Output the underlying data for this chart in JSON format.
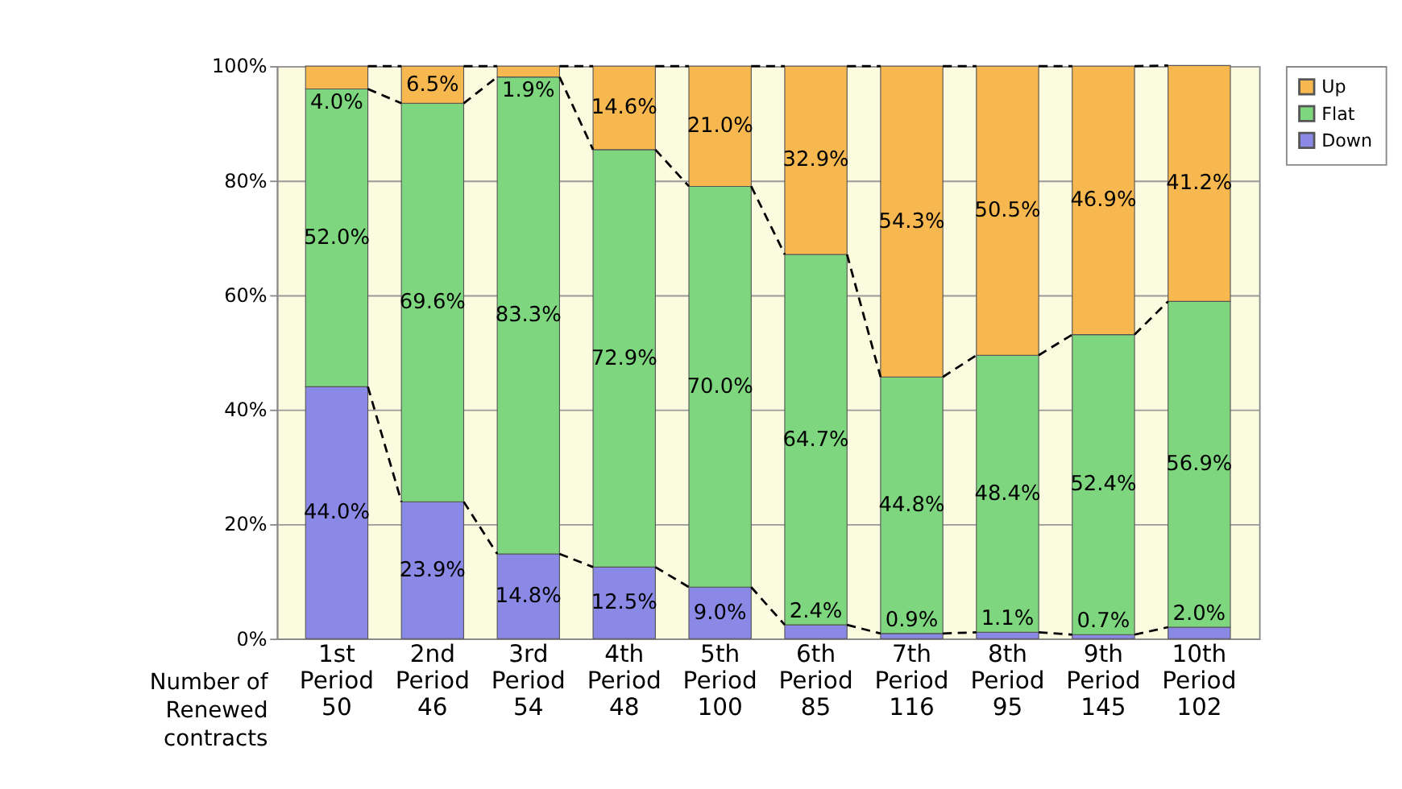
{
  "chart_data": {
    "type": "bar",
    "stacked": true,
    "categories": [
      "1st\nPeriod\n50",
      "2nd\nPeriod\n46",
      "3rd\nPeriod\n54",
      "4th\nPeriod\n48",
      "5th\nPeriod\n100",
      "6th\nPeriod\n85",
      "7th\nPeriod\n116",
      "8th\nPeriod\n95",
      "9th\nPeriod\n145",
      "10th\nPeriod\n102"
    ],
    "series": [
      {
        "name": "Down",
        "color": "#8a8ae6",
        "values": [
          44.0,
          23.9,
          14.8,
          12.5,
          9.0,
          2.4,
          0.9,
          1.1,
          0.7,
          2.0
        ],
        "value_labels": [
          "44.0%",
          "23.9%",
          "14.8%",
          "12.5%",
          "9.0%",
          "2.4%",
          "0.9%",
          "1.1%",
          "0.7%",
          "2.0%"
        ]
      },
      {
        "name": "Flat",
        "color": "#7ed67e",
        "values": [
          52.0,
          69.6,
          83.3,
          72.9,
          70.0,
          64.7,
          44.8,
          48.4,
          52.4,
          56.9
        ],
        "value_labels": [
          "52.0%",
          "69.6%",
          "83.3%",
          "72.9%",
          "70.0%",
          "64.7%",
          "44.8%",
          "48.4%",
          "52.4%",
          "56.9%"
        ]
      },
      {
        "name": "Up",
        "color": "#f7b850",
        "values": [
          4.0,
          6.5,
          1.9,
          14.6,
          21.0,
          32.9,
          54.3,
          50.5,
          46.9,
          41.2
        ],
        "value_labels": [
          "4.0%",
          "6.5%",
          "1.9%",
          "14.6%",
          "21.0%",
          "32.9%",
          "54.3%",
          "50.5%",
          "46.9%",
          "41.2%"
        ]
      }
    ],
    "ylim": [
      0,
      100
    ],
    "yticks": [
      {
        "value": 0,
        "label": "0%"
      },
      {
        "value": 20,
        "label": "20%"
      },
      {
        "value": 40,
        "label": "40%"
      },
      {
        "value": 60,
        "label": "60%"
      },
      {
        "value": 80,
        "label": "80%"
      },
      {
        "value": 100,
        "label": "100%"
      }
    ],
    "grid": "y",
    "legend": "top right",
    "annotations": [
      "Number of\nRenewed\ncontracts"
    ]
  }
}
